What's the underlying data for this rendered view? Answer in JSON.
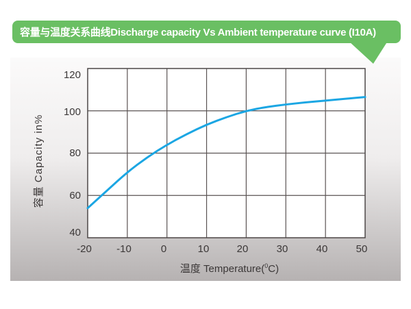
{
  "banner": {
    "title": "容量与温度关系曲线Discharge capacity Vs Ambient temperature curve (I10A)"
  },
  "colors": {
    "banner_green": "#6abf63",
    "curve_blue": "#1ba6e3",
    "grid": "#5a5353",
    "plot_border": "#4c4747",
    "plot_background": "#ffffff",
    "panel_gradient_top": "#fbfafa",
    "panel_gradient_bottom": "#b6b2b2",
    "tick_text": "#3b3737"
  },
  "axis_x": {
    "title_prefix": "温度 Temperature(",
    "title_sup": "0",
    "title_suffix": "C)"
  },
  "axis_y": {
    "title": "容量 Capacity in%"
  },
  "chart_data": {
    "type": "line",
    "title": "容量与温度关系曲线Discharge capacity Vs Ambient temperature curve (I10A)",
    "xlabel": "温度 Temperature(°C)",
    "ylabel": "容量 Capacity in%",
    "series": [
      {
        "name": "discharge-capacity-I10A",
        "x": [
          -20,
          -15,
          -10,
          -5,
          0,
          5,
          10,
          15,
          20,
          25,
          30,
          35,
          40,
          45,
          50
        ],
        "values": [
          54,
          62.5,
          71,
          78,
          84,
          89,
          93.5,
          97,
          100,
          101.8,
          103,
          104,
          104.8,
          105.7,
          106.5
        ]
      }
    ],
    "xlim": [
      -20,
      50
    ],
    "ylim": [
      40,
      120
    ],
    "x_ticks": [
      "-20",
      "-10",
      "0",
      "10",
      "20",
      "30",
      "40",
      "50"
    ],
    "x_tick_values": [
      -20,
      -10,
      0,
      10,
      20,
      30,
      40,
      50
    ],
    "y_ticks": [
      "120",
      "100",
      "80",
      "60",
      "40"
    ],
    "y_tick_values": [
      120,
      100,
      80,
      60,
      40
    ],
    "grid": true,
    "legend": false
  }
}
